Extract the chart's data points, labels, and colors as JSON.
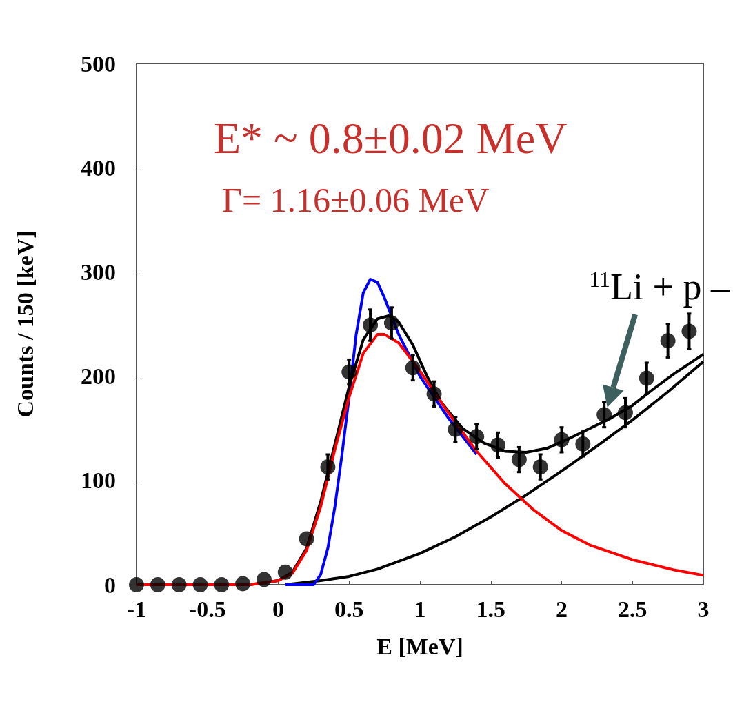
{
  "chart_data": {
    "type": "scatter",
    "xlabel": "E [MeV]",
    "ylabel": "Counts / 150 [keV]",
    "xlim": [
      -1,
      3
    ],
    "xticks": [
      -1,
      -0.5,
      0,
      0.5,
      1,
      1.5,
      2,
      2.5,
      3
    ],
    "ylim": [
      0,
      500
    ],
    "yticks": [
      0,
      100,
      200,
      300,
      400,
      500
    ],
    "grid": false,
    "marker": "circle",
    "annotations": [
      "E* ~ 0.8±0.02 MeV",
      "Γ= 1.16±0.06 MeV",
      {
        "text": "$^{11}$Li + p –",
        "x": 2.3,
        "y": 160
      }
    ],
    "series": [
      {
        "type": "line",
        "marker": "none",
        "color": "#000000",
        "x": [
          0.05,
          0.3,
          0.5,
          0.7,
          1.0,
          1.25,
          1.5,
          1.75,
          2.0,
          2.25,
          2.5,
          2.75,
          3.0
        ],
        "values": [
          0,
          4,
          8,
          15,
          30,
          46,
          65,
          86,
          109,
          133,
          158,
          185,
          214
        ]
      },
      {
        "type": "line",
        "marker": "none",
        "color": "#0000ff",
        "x": [
          0.05,
          0.25,
          0.3,
          0.35,
          0.4,
          0.45,
          0.5,
          0.55,
          0.6,
          0.65,
          0.7,
          0.75,
          0.85,
          1.0,
          1.2,
          1.4
        ],
        "values": [
          0,
          0,
          10,
          35,
          75,
          125,
          180,
          240,
          280,
          293,
          290,
          275,
          240,
          200,
          160,
          125
        ]
      },
      {
        "type": "line",
        "marker": "none",
        "color": "#000000",
        "x": [
          -1,
          -0.2,
          0,
          0.1,
          0.2,
          0.3,
          0.4,
          0.5,
          0.6,
          0.7,
          0.78,
          0.85,
          0.95,
          1.05,
          1.15,
          1.3,
          1.45,
          1.6,
          1.75,
          1.9,
          2.05,
          2.2,
          2.35,
          2.5,
          2.65,
          2.8,
          3.0
        ],
        "values": [
          0,
          0,
          4,
          12,
          35,
          80,
          135,
          190,
          235,
          255,
          258,
          252,
          230,
          200,
          175,
          150,
          136,
          128,
          127,
          131,
          140,
          150,
          160,
          172,
          188,
          203,
          221
        ]
      },
      {
        "type": "line",
        "marker": "none",
        "color": "#ff0000",
        "x": [
          -1,
          -0.2,
          0,
          0.1,
          0.2,
          0.3,
          0.4,
          0.5,
          0.6,
          0.7,
          0.75,
          0.85,
          1.0,
          1.2,
          1.4,
          1.6,
          1.8,
          2.0,
          2.2,
          2.5,
          2.8,
          3.0
        ],
        "values": [
          0,
          0,
          4,
          11,
          33,
          75,
          130,
          180,
          222,
          240,
          240,
          232,
          205,
          165,
          128,
          97,
          72,
          52,
          38,
          24,
          14,
          9
        ]
      },
      {
        "color": "#000000",
        "x": [
          -1,
          -0.85,
          -0.7,
          -0.55,
          -0.4,
          -0.25,
          -0.1,
          0.05,
          0.2,
          0.35,
          0.5,
          0.65,
          0.8,
          0.95,
          1.1,
          1.25,
          1.4,
          1.55,
          1.7,
          1.85,
          2.0,
          2.15,
          2.3,
          2.45,
          2.6,
          2.75,
          2.9
        ],
        "values": [
          0,
          0,
          0,
          0,
          0,
          1,
          5,
          12,
          44,
          113,
          204,
          249,
          251,
          208,
          183,
          149,
          142,
          134,
          120,
          113,
          139,
          135,
          163,
          165,
          198,
          234,
          243
        ],
        "errors": [
          null,
          null,
          null,
          null,
          null,
          null,
          null,
          null,
          null,
          12,
          12,
          15,
          15,
          12,
          12,
          12,
          12,
          12,
          12,
          12,
          12,
          12,
          12,
          14,
          15,
          16,
          17
        ]
      }
    ]
  }
}
